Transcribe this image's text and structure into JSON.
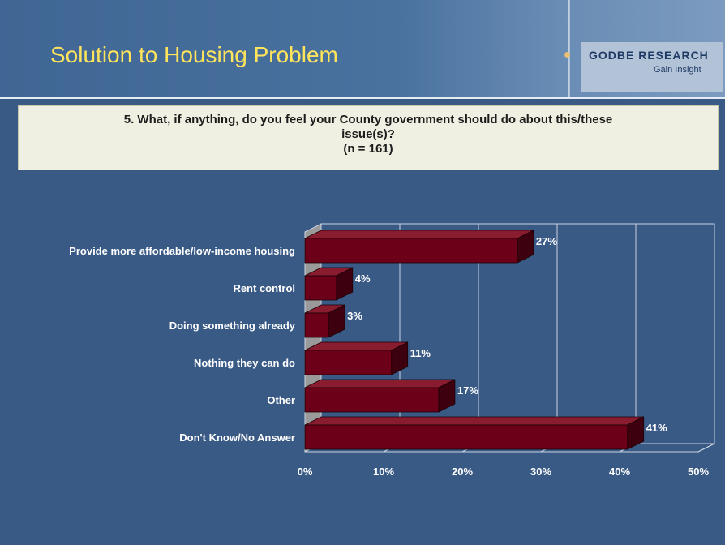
{
  "slide": {
    "title": "Solution to Housing Problem",
    "logo": {
      "name": "GODBE RESEARCH",
      "tagline": "Gain Insight"
    },
    "question": {
      "line1": "5. What, if anything, do you feel your County government should do about this/these",
      "line2": "issue(s)?",
      "line3": "(n = 161)"
    }
  },
  "colors": {
    "background": "#3a5a86",
    "title": "#ffe45c",
    "bar_front": "#6b0018",
    "bar_top": "#8a1c30",
    "bar_side": "#3d000e"
  },
  "chart_data": {
    "type": "bar",
    "orientation": "horizontal",
    "style": "3d",
    "categories": [
      "Provide more affordable/low-income housing",
      "Rent control",
      "Doing something already",
      "Nothing they can do",
      "Other",
      "Don't Know/No Answer"
    ],
    "values": [
      27,
      4,
      3,
      11,
      17,
      41
    ],
    "data_labels": [
      "27%",
      "4%",
      "3%",
      "11%",
      "17%",
      "41%"
    ],
    "xlim": [
      0,
      50
    ],
    "xticks": [
      "0%",
      "10%",
      "20%",
      "30%",
      "40%",
      "50%"
    ],
    "grid": true,
    "legend": "none"
  }
}
